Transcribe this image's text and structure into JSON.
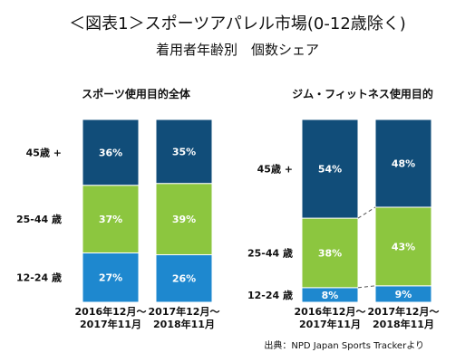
{
  "title": "＜図表1＞スポーツアパレル市場(0-12歳除く)",
  "subtitle": "着用者年齢別　個数シェア",
  "source": "出典：NPD Japan Sports Trackerより",
  "colors": {
    "age45plus": "#114d79",
    "age25_44": "#8cc63f",
    "age12_24": "#1e88cf"
  },
  "chart_data": [
    {
      "type": "bar",
      "stacked": true,
      "percent": true,
      "title": "スポーツ使用目的全体",
      "categories": [
        "2016年12月～\n2017年11月",
        "2017年12月～\n2018年11月"
      ],
      "series": [
        {
          "name": "12-24 歳",
          "values": [
            27,
            26
          ],
          "labels": [
            "27%",
            "26%"
          ]
        },
        {
          "name": "25-44 歳",
          "values": [
            37,
            39
          ],
          "labels": [
            "37%",
            "39%"
          ]
        },
        {
          "name": "45歳 +",
          "values": [
            36,
            35
          ],
          "labels": [
            "36%",
            "35%"
          ]
        }
      ],
      "ylim": [
        0,
        100
      ]
    },
    {
      "type": "bar",
      "stacked": true,
      "percent": true,
      "title": "ジム・フィットネス使用目的",
      "categories": [
        "2016年12月～\n2017年11月",
        "2017年12月～\n2018年11月"
      ],
      "series": [
        {
          "name": "12-24 歳",
          "values": [
            8,
            9
          ],
          "labels": [
            "8%",
            "9%"
          ]
        },
        {
          "name": "25-44 歳",
          "values": [
            38,
            43
          ],
          "labels": [
            "38%",
            "43%"
          ]
        },
        {
          "name": "45歳 +",
          "values": [
            54,
            48
          ],
          "labels": [
            "54%",
            "48%"
          ]
        }
      ],
      "ylim": [
        0,
        100
      ],
      "connectors": true
    }
  ]
}
